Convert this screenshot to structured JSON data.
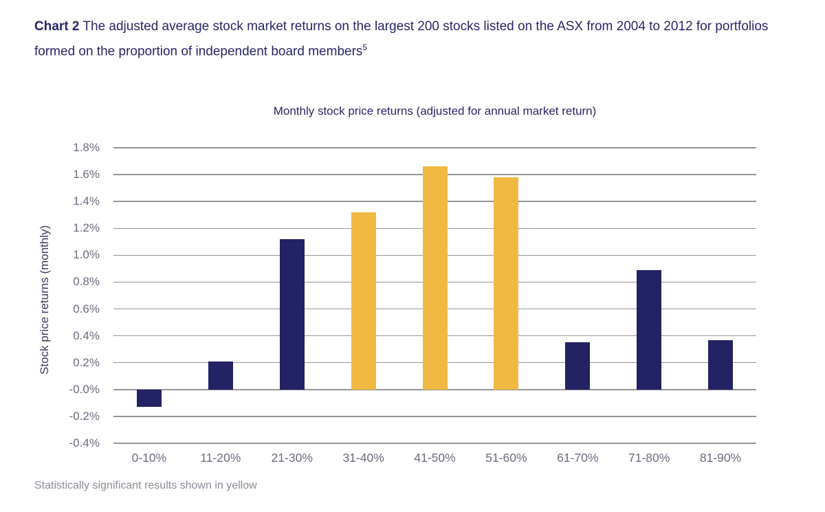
{
  "page": {
    "title_bold": "Chart 2",
    "title_rest": " The adjusted average stock market returns on the largest 200 stocks listed on the ASX from 2004 to 2012 for portfolios formed on the proportion of independent board members",
    "title_superscript": "5",
    "footnote": "Statistically significant results shown in yellow"
  },
  "chart_data": {
    "type": "bar",
    "title": "Monthly stock price returns (adjusted for annual market return)",
    "ylabel": "Stock price returns (monthly)",
    "xlabel": "",
    "categories": [
      "0-10%",
      "11-20%",
      "21-30%",
      "31-40%",
      "41-50%",
      "51-60%",
      "61-70%",
      "71-80%",
      "81-90%"
    ],
    "values": [
      -0.13,
      0.21,
      1.12,
      1.32,
      1.66,
      1.58,
      0.35,
      0.89,
      0.37
    ],
    "significant": [
      false,
      false,
      false,
      true,
      true,
      true,
      false,
      false,
      false
    ],
    "ylim": [
      -0.4,
      1.8
    ],
    "ytick_step": 0.2,
    "ytick_labels": [
      "1.8%",
      "1.6%",
      "1.4%",
      "1.2%",
      "1.0%",
      "0.8%",
      "0.6%",
      "0.4%",
      "0.2%",
      "-0.0%",
      "-0.2%",
      "-0.4%"
    ],
    "grid": true,
    "legend_position": "none",
    "colors": {
      "bar": "#232264",
      "significant": "#f0b942",
      "gridline": "#949399",
      "tick_text": "#6c6b7e",
      "title_text": "#2a2468"
    },
    "annotation": "Statistically significant results shown in yellow"
  }
}
